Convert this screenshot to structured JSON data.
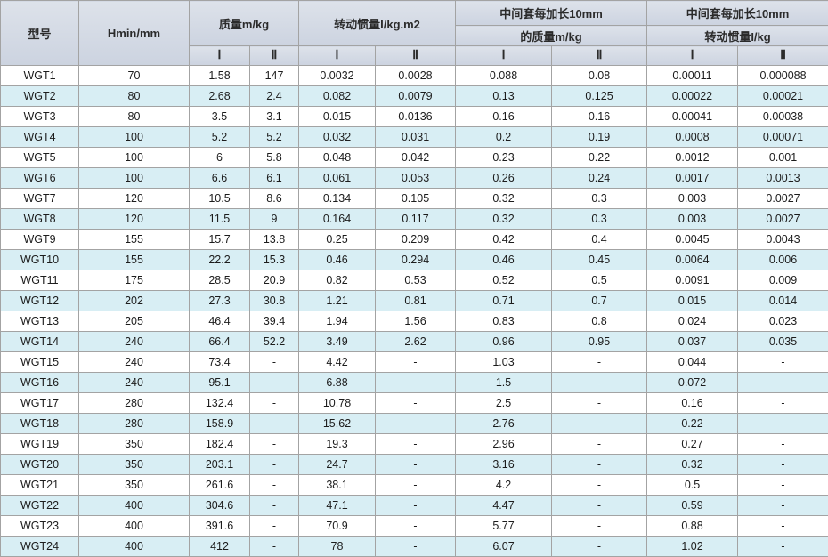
{
  "colors": {
    "border": "#a3a3a3",
    "header_bg_top": "#dde2ea",
    "header_bg_bottom": "#ccd3e0",
    "alt_row_bg": "#d8eef4",
    "body_text": "#1c1c1c",
    "header_text": "#2b2b2b"
  },
  "table": {
    "header": {
      "col_model": "型号",
      "col_hmin": "Hmin/mm",
      "group_mass": "质量m/kg",
      "group_inertia": "转动惯量I/kg.m2",
      "group_ext_mass_line1": "中间套每加长10mm",
      "group_ext_mass_line2": "的质量m/kg",
      "group_ext_inertia_line1": "中间套每加长10mm",
      "group_ext_inertia_line2": "转动惯量I/kg",
      "sub_i": "Ⅰ",
      "sub_ii": "Ⅱ"
    },
    "rows": [
      [
        "WGT1",
        "70",
        "1.58",
        "147",
        "0.0032",
        "0.0028",
        "0.088",
        "0.08",
        "0.00011",
        "0.000088"
      ],
      [
        "WGT2",
        "80",
        "2.68",
        "2.4",
        "0.082",
        "0.0079",
        "0.13",
        "0.125",
        "0.00022",
        "0.00021"
      ],
      [
        "WGT3",
        "80",
        "3.5",
        "3.1",
        "0.015",
        "0.0136",
        "0.16",
        "0.16",
        "0.00041",
        "0.00038"
      ],
      [
        "WGT4",
        "100",
        "5.2",
        "5.2",
        "0.032",
        "0.031",
        "0.2",
        "0.19",
        "0.0008",
        "0.00071"
      ],
      [
        "WGT5",
        "100",
        "6",
        "5.8",
        "0.048",
        "0.042",
        "0.23",
        "0.22",
        "0.0012",
        "0.001"
      ],
      [
        "WGT6",
        "100",
        "6.6",
        "6.1",
        "0.061",
        "0.053",
        "0.26",
        "0.24",
        "0.0017",
        "0.0013"
      ],
      [
        "WGT7",
        "120",
        "10.5",
        "8.6",
        "0.134",
        "0.105",
        "0.32",
        "0.3",
        "0.003",
        "0.0027"
      ],
      [
        "WGT8",
        "120",
        "11.5",
        "9",
        "0.164",
        "0.117",
        "0.32",
        "0.3",
        "0.003",
        "0.0027"
      ],
      [
        "WGT9",
        "155",
        "15.7",
        "13.8",
        "0.25",
        "0.209",
        "0.42",
        "0.4",
        "0.0045",
        "0.0043"
      ],
      [
        "WGT10",
        "155",
        "22.2",
        "15.3",
        "0.46",
        "0.294",
        "0.46",
        "0.45",
        "0.0064",
        "0.006"
      ],
      [
        "WGT11",
        "175",
        "28.5",
        "20.9",
        "0.82",
        "0.53",
        "0.52",
        "0.5",
        "0.0091",
        "0.009"
      ],
      [
        "WGT12",
        "202",
        "27.3",
        "30.8",
        "1.21",
        "0.81",
        "0.71",
        "0.7",
        "0.015",
        "0.014"
      ],
      [
        "WGT13",
        "205",
        "46.4",
        "39.4",
        "1.94",
        "1.56",
        "0.83",
        "0.8",
        "0.024",
        "0.023"
      ],
      [
        "WGT14",
        "240",
        "66.4",
        "52.2",
        "3.49",
        "2.62",
        "0.96",
        "0.95",
        "0.037",
        "0.035"
      ],
      [
        "WGT15",
        "240",
        "73.4",
        "-",
        "4.42",
        "-",
        "1.03",
        "-",
        "0.044",
        "-"
      ],
      [
        "WGT16",
        "240",
        "95.1",
        "-",
        "6.88",
        "-",
        "1.5",
        "-",
        "0.072",
        "-"
      ],
      [
        "WGT17",
        "280",
        "132.4",
        "-",
        "10.78",
        "-",
        "2.5",
        "-",
        "0.16",
        "-"
      ],
      [
        "WGT18",
        "280",
        "158.9",
        "-",
        "15.62",
        "-",
        "2.76",
        "-",
        "0.22",
        "-"
      ],
      [
        "WGT19",
        "350",
        "182.4",
        "-",
        "19.3",
        "-",
        "2.96",
        "-",
        "0.27",
        "-"
      ],
      [
        "WGT20",
        "350",
        "203.1",
        "-",
        "24.7",
        "-",
        "3.16",
        "-",
        "0.32",
        "-"
      ],
      [
        "WGT21",
        "350",
        "261.6",
        "-",
        "38.1",
        "-",
        "4.2",
        "-",
        "0.5",
        "-"
      ],
      [
        "WGT22",
        "400",
        "304.6",
        "-",
        "47.1",
        "-",
        "4.47",
        "-",
        "0.59",
        "-"
      ],
      [
        "WGT23",
        "400",
        "391.6",
        "-",
        "70.9",
        "-",
        "5.77",
        "-",
        "0.88",
        "-"
      ],
      [
        "WGT24",
        "400",
        "412",
        "-",
        "78",
        "-",
        "6.07",
        "-",
        "1.02",
        "-"
      ]
    ]
  }
}
